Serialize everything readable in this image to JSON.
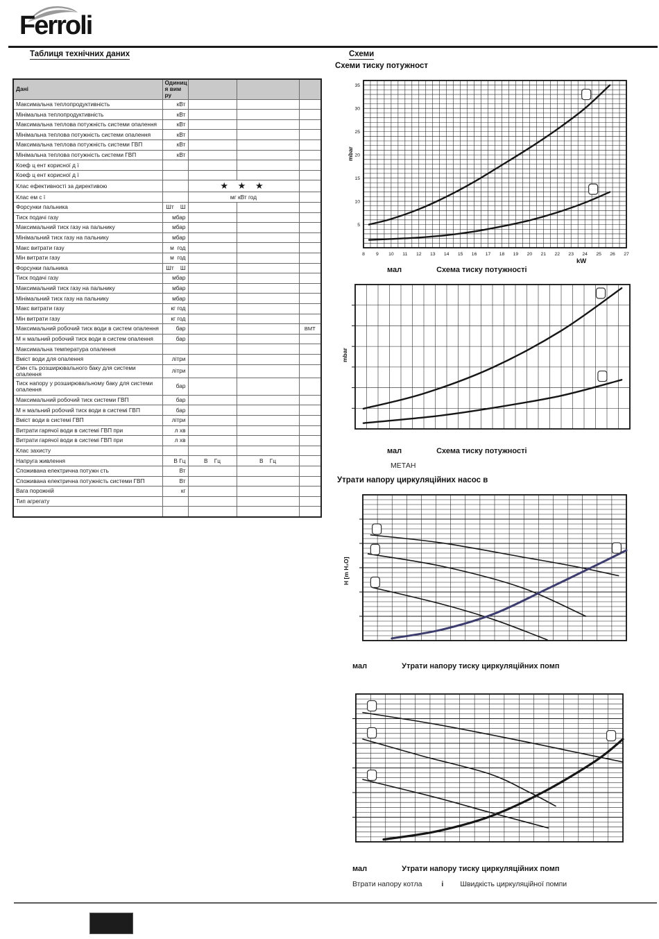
{
  "page": {
    "brand": "Ferroli",
    "left_section_title": "Таблиця технічних даних",
    "right_section_title": "Схеми",
    "right_subtitle": "Схеми  тиску   потужност",
    "pump_section_title": "Утрати напору циркуляційних насос в"
  },
  "table": {
    "header": {
      "col1": "Дані",
      "col2": "Одиниц я вим ру"
    },
    "rows": [
      {
        "label": "Максимальна теплопродуктивність",
        "unit": "кВт"
      },
      {
        "label": "Мінімальна теплопродуктивність",
        "unit": "кВт"
      },
      {
        "label": "Максимальна теплова потужність  системи опалення",
        "unit": "кВт"
      },
      {
        "label": "Мінімальна теплова потужність  системи опалення",
        "unit": "кВт"
      },
      {
        "label": "Максимальна теплова потужність  системи ГВП",
        "unit": "кВт"
      },
      {
        "label": "Мінімальна теплова потужність  системи ГВП",
        "unit": "кВт"
      },
      {
        "label": "Коеф ц ент корисної д ї",
        "unit": ""
      },
      {
        "label": "Коеф ц ент корисної д ї",
        "unit": ""
      },
      {
        "label": "Клас ефективності за директивою",
        "unit": "",
        "span": "★ ★ ★",
        "span_class": "stars",
        "starrow": true
      },
      {
        "label": "Клас ем с ї",
        "unit": "",
        "span": "мг кВт год",
        "span_class": "cmid"
      },
      {
        "label": "Форсунки пальника",
        "unit": "Шт    Ш"
      },
      {
        "label": "Тиск подачі газу",
        "unit": "мбар"
      },
      {
        "label": "Максимальний тиск газу на  пальнику",
        "unit": "мбар"
      },
      {
        "label": "Мінімальний тиск газу на  пальнику",
        "unit": "мбар"
      },
      {
        "label": "Макс  витрати газу",
        "unit": "м  год"
      },
      {
        "label": "Мін  витрати газу",
        "unit": "м  год"
      },
      {
        "label": "Форсунки пальника",
        "unit": "Шт    Ш"
      },
      {
        "label": "Тиск подачі газу",
        "unit": "мбар"
      },
      {
        "label": "Максимальний тиск газу на  пальнику",
        "unit": "мбар"
      },
      {
        "label": "Мінімальний тиск газу на  пальнику",
        "unit": "мбар"
      },
      {
        "label": "Макс  витрати газу",
        "unit": "кг год"
      },
      {
        "label": "Мін  витрати газу",
        "unit": "кг год"
      },
      {
        "label": "Максимальний робочий тиск води  в систем  опалення",
        "unit": "бар",
        "c5": "ВМТ"
      },
      {
        "label": "М н мальний робочий тиск води  в систем  опалення",
        "unit": "бар"
      },
      {
        "label": "Максимальна температура опалення",
        "unit": ""
      },
      {
        "label": "Вміст води для опалення",
        "unit": "літри"
      },
      {
        "label": "Ємн сть розширювального баку для системи опалення",
        "unit": "літри"
      },
      {
        "label": "Тиск напору у  розширювальному баку для системи опалення",
        "unit": "бар",
        "tall": true
      },
      {
        "label": "Максимальний робочий тиск  системи ГВП",
        "unit": "бар"
      },
      {
        "label": "М н мальний робочий тиск води  в системі ГВП",
        "unit": "бар"
      },
      {
        "label": "Вміст води в системі ГВП",
        "unit": "літри"
      },
      {
        "label": "Витрати гарячої води в системі ГВП при",
        "unit": "л хв"
      },
      {
        "label": "Витрати гарячої води в системі ГВП при",
        "unit": "л хв"
      },
      {
        "label": "Клас захисту",
        "unit": ""
      },
      {
        "label": "Напруга живлення",
        "unit": "В Гц",
        "c3": "В    Гц",
        "c4": "В    Гц"
      },
      {
        "label": "Споживана електрична потужн сть",
        "unit": "Вт"
      },
      {
        "label": "Споживана електрична потужність  системи ГВП",
        "unit": "Вт"
      },
      {
        "label": "Вага  порожній",
        "unit": "кг"
      },
      {
        "label": "Тип агрегату",
        "unit": ""
      },
      {
        "label": "",
        "unit": ""
      }
    ]
  },
  "chart_data": [
    {
      "name": "pressure-power-diagram-1",
      "type": "line",
      "caption_label": "мал",
      "caption": "Схема тиску   потужності",
      "xlabel": "kW",
      "ylabel": "mbar",
      "x_range": [
        8,
        27
      ],
      "y_range": [
        0,
        36
      ],
      "x_ticks": [
        8,
        9,
        10,
        11,
        12,
        13,
        14,
        15,
        16,
        17,
        18,
        19,
        20,
        21,
        22,
        23,
        24,
        25,
        26,
        27
      ],
      "y_ticks": [
        5,
        10,
        15,
        20,
        25,
        30,
        35
      ],
      "grid": {
        "cols": 38,
        "rows": 36
      },
      "series": [
        {
          "name": "max-burner-pressure",
          "points": [
            [
              8.4,
              5
            ],
            [
              10,
              6.2
            ],
            [
              12,
              8.3
            ],
            [
              14,
              11
            ],
            [
              16,
              14.2
            ],
            [
              18,
              17.8
            ],
            [
              20,
              21.5
            ],
            [
              22,
              25.5
            ],
            [
              24,
              30
            ],
            [
              25.8,
              35
            ]
          ]
        },
        {
          "name": "min-burner-pressure",
          "points": [
            [
              8.4,
              1.7
            ],
            [
              10,
              1.9
            ],
            [
              12,
              2.2
            ],
            [
              14,
              2.7
            ],
            [
              16,
              3.5
            ],
            [
              18,
              4.6
            ],
            [
              20,
              5.9
            ],
            [
              22,
              7.6
            ],
            [
              24,
              9.7
            ],
            [
              25.8,
              12
            ]
          ]
        }
      ],
      "markers": [
        [
          24.1,
          33
        ],
        [
          24.6,
          12.6
        ]
      ]
    },
    {
      "name": "pressure-power-diagram-2",
      "type": "line",
      "caption_label": "мал",
      "caption": "Схема тиску   потужності",
      "subcaption": "МЕТАН",
      "ylabel": "mbar",
      "grid": {
        "cols": 24,
        "rows": 7,
        "left_ticks": true
      },
      "series_norm": [
        {
          "name": "upper-curve",
          "points": [
            [
              0.03,
              0.86
            ],
            [
              0.25,
              0.755
            ],
            [
              0.5,
              0.575
            ],
            [
              0.75,
              0.32
            ],
            [
              0.97,
              0.025
            ]
          ]
        },
        {
          "name": "lower-curve",
          "points": [
            [
              0.03,
              0.96
            ],
            [
              0.3,
              0.91
            ],
            [
              0.5,
              0.855
            ],
            [
              0.75,
              0.77
            ],
            [
              0.97,
              0.66
            ]
          ]
        }
      ],
      "markers_norm": [
        [
          0.894,
          0.06
        ],
        [
          0.9,
          0.635
        ]
      ]
    },
    {
      "name": "pump-head-loss-diagram-1",
      "type": "line",
      "caption_label": "мал",
      "caption": "Утрати напору   тиску циркуляційних помп",
      "ylabel": "H [m H₂O]",
      "grid": {
        "cols": 18,
        "rows": 30,
        "major_every_y": 5,
        "left_ticks": true
      },
      "series_norm": [
        {
          "name": "pump-speed-3",
          "points": [
            [
              0.03,
              0.275
            ],
            [
              0.3,
              0.33
            ],
            [
              0.6,
              0.425
            ],
            [
              0.8,
              0.49
            ],
            [
              0.97,
              0.555
            ]
          ],
          "width": 1.6
        },
        {
          "name": "pump-speed-2",
          "points": [
            [
              0.02,
              0.405
            ],
            [
              0.3,
              0.49
            ],
            [
              0.6,
              0.635
            ],
            [
              0.846,
              0.833
            ]
          ],
          "width": 1.6
        },
        {
          "name": "pump-speed-1",
          "points": [
            [
              0.035,
              0.635
            ],
            [
              0.3,
              0.75
            ],
            [
              0.5,
              0.858
            ],
            [
              0.7,
              0.995
            ]
          ],
          "width": 1.6
        },
        {
          "name": "boiler-head-loss",
          "color": "#3c3c6e",
          "width": 3,
          "points": [
            [
              0.11,
              0.985
            ],
            [
              0.3,
              0.925
            ],
            [
              0.5,
              0.815
            ],
            [
              0.7,
              0.645
            ],
            [
              0.9,
              0.47
            ],
            [
              1.0,
              0.38
            ]
          ]
        }
      ],
      "markers_norm": [
        [
          0.053,
          0.235
        ],
        [
          0.047,
          0.375
        ],
        [
          0.047,
          0.6
        ],
        [
          0.963,
          0.365
        ]
      ]
    },
    {
      "name": "pump-head-loss-diagram-2",
      "type": "line",
      "caption_label": "мал",
      "caption": "Утрати напору   тиску циркуляційних помп",
      "grid": {
        "cols": 18,
        "rows": 30,
        "major_every_y": 5,
        "left_ticks": true
      },
      "series_norm": [
        {
          "name": "pump-speed-3",
          "points": [
            [
              0.026,
              0.125
            ],
            [
              0.3,
              0.205
            ],
            [
              0.6,
              0.31
            ],
            [
              0.8,
              0.385
            ],
            [
              1.0,
              0.46
            ]
          ],
          "width": 1.6
        },
        {
          "name": "pump-speed-2",
          "points": [
            [
              0.026,
              0.305
            ],
            [
              0.25,
              0.42
            ],
            [
              0.5,
              0.54
            ],
            [
              0.649,
              0.664
            ],
            [
              0.748,
              0.758
            ]
          ],
          "width": 1.6
        },
        {
          "name": "pump-speed-1",
          "points": [
            [
              0.026,
              0.578
            ],
            [
              0.3,
              0.7
            ],
            [
              0.5,
              0.8
            ],
            [
              0.72,
              0.906
            ]
          ],
          "width": 1.6
        },
        {
          "name": "boiler-head-loss",
          "width": 3.2,
          "points": [
            [
              0.104,
              0.984
            ],
            [
              0.3,
              0.93
            ],
            [
              0.5,
              0.83
            ],
            [
              0.7,
              0.665
            ],
            [
              0.9,
              0.45
            ],
            [
              1.0,
              0.305
            ]
          ]
        }
      ],
      "markers_norm": [
        [
          0.06,
          0.08
        ],
        [
          0.06,
          0.263
        ],
        [
          0.06,
          0.549
        ],
        [
          0.956,
          0.282
        ]
      ],
      "legend": {
        "boiler": "Втрати напору котла",
        "sep": "і",
        "pump": "Швидкість циркуляційної помпи"
      }
    }
  ]
}
